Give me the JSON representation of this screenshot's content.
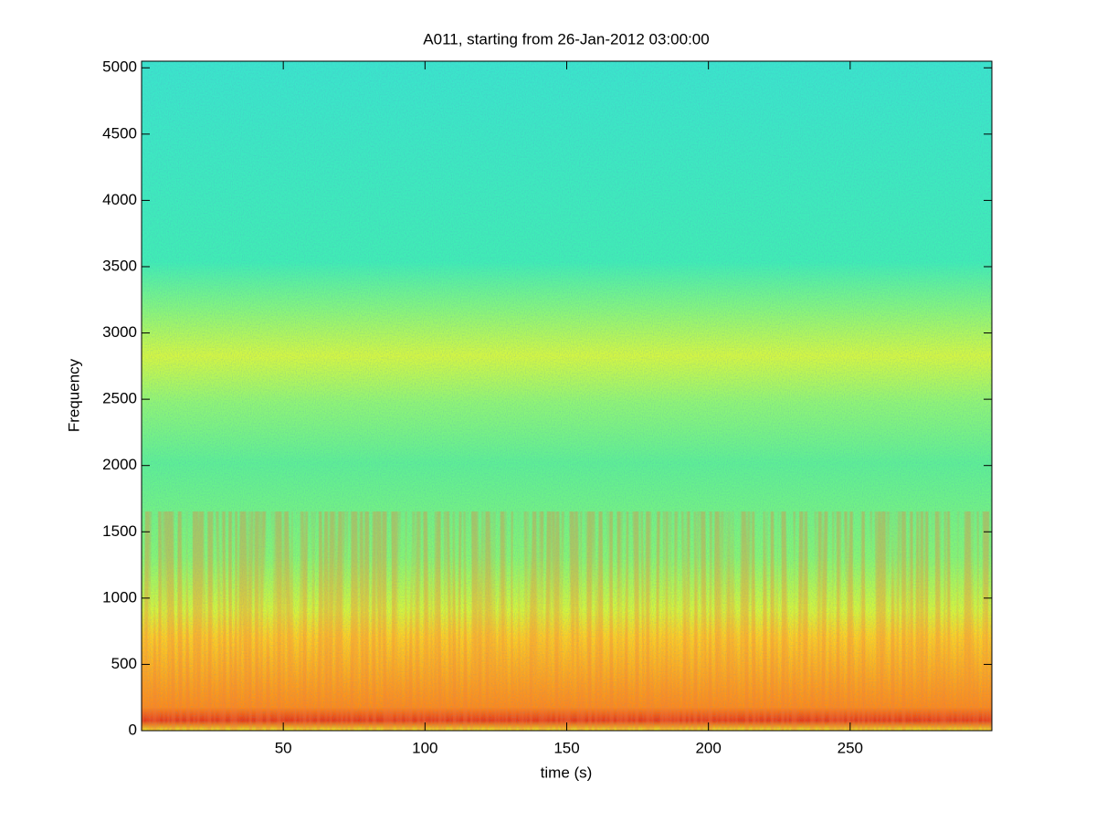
{
  "chart_data": {
    "type": "spectrogram",
    "title": "A011, starting from 26-Jan-2012 03:00:00",
    "x_label": "time (s)",
    "y_label": "Frequency",
    "xlim": [
      0,
      300
    ],
    "xticks": [
      50,
      100,
      150,
      200,
      250
    ],
    "ylim": [
      0,
      5050
    ],
    "yticks": [
      0,
      500,
      1000,
      1500,
      2000,
      2500,
      3000,
      3500,
      4000,
      4500,
      5000
    ]
  }
}
